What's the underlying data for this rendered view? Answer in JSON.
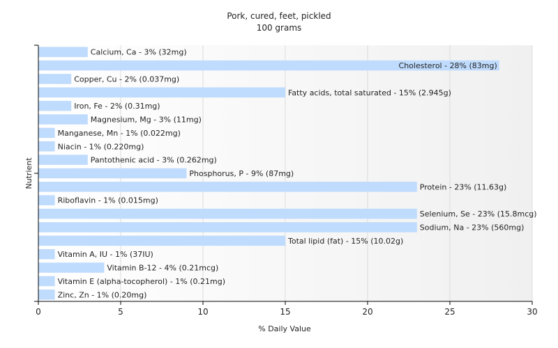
{
  "chart_data": {
    "type": "bar",
    "orientation": "horizontal",
    "title": "Pork, cured, feet, pickled",
    "subtitle": "100 grams",
    "xlabel": "% Daily Value",
    "ylabel": "Nutrient",
    "xlim": [
      0,
      30
    ],
    "xticks": [
      0,
      5,
      10,
      15,
      20,
      25,
      30
    ],
    "grid": true,
    "bar_color": "#bfdbfd",
    "categories": [
      "Calcium, Ca",
      "Cholesterol",
      "Copper, Cu",
      "Fatty acids, total saturated",
      "Iron, Fe",
      "Magnesium, Mg",
      "Manganese, Mn",
      "Niacin",
      "Pantothenic acid",
      "Phosphorus, P",
      "Protein",
      "Riboflavin",
      "Selenium, Se",
      "Sodium, Na",
      "Total lipid (fat)",
      "Vitamin A, IU",
      "Vitamin B-12",
      "Vitamin E (alpha-tocopherol)",
      "Zinc, Zn"
    ],
    "values": [
      3,
      28,
      2,
      15,
      2,
      3,
      1,
      1,
      3,
      9,
      23,
      1,
      23,
      23,
      15,
      1,
      4,
      1,
      1
    ],
    "labels": [
      "Calcium, Ca - 3% (32mg)",
      "Cholesterol - 28% (83mg)",
      "Copper, Cu - 2% (0.037mg)",
      "Fatty acids, total saturated - 15% (2.945g)",
      "Iron, Fe - 2% (0.31mg)",
      "Magnesium, Mg - 3% (11mg)",
      "Manganese, Mn - 1% (0.022mg)",
      "Niacin - 1% (0.220mg)",
      "Pantothenic acid - 3% (0.262mg)",
      "Phosphorus, P - 9% (87mg)",
      "Protein - 23% (11.63g)",
      "Riboflavin - 1% (0.015mg)",
      "Selenium, Se - 23% (15.8mcg)",
      "Sodium, Na - 23% (560mg)",
      "Total lipid (fat) - 15% (10.02g)",
      "Vitamin A, IU - 1% (37IU)",
      "Vitamin B-12 - 4% (0.21mcg)",
      "Vitamin E (alpha-tocopherol) - 1% (0.21mg)",
      "Zinc, Zn - 1% (0.20mg)"
    ]
  }
}
